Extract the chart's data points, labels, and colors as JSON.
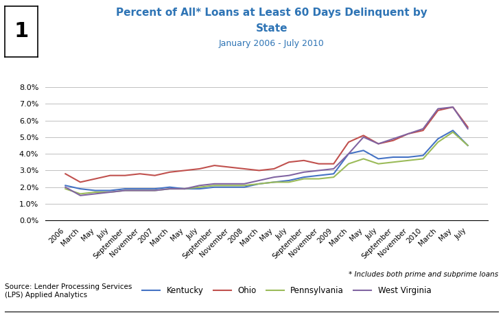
{
  "title_line1": "Percent of All* Loans at Least 60 Days Delinquent by",
  "title_line2": "State",
  "subtitle": "January 2006 - July 2010",
  "title_color": "#2E74B5",
  "subtitle_color": "#2E74B5",
  "figure_label": "1",
  "source_text": "Source: Lender Processing Services\n(LPS) Applied Analytics",
  "footnote": "* Includes both prime and subprime loans",
  "x_labels": [
    "2006",
    "March",
    "May",
    "July",
    "September",
    "November",
    "2007",
    "March",
    "May",
    "July",
    "September",
    "November",
    "2008",
    "March",
    "May",
    "July",
    "September",
    "November",
    "2009",
    "March",
    "May",
    "July",
    "September",
    "November",
    "2010",
    "March",
    "May",
    "July"
  ],
  "ylim": [
    0.0,
    0.085
  ],
  "yticks": [
    0.0,
    0.01,
    0.02,
    0.03,
    0.04,
    0.05,
    0.06,
    0.07,
    0.08
  ],
  "ytick_labels": [
    "0.0%",
    "1.0%",
    "2.0%",
    "3.0%",
    "4.0%",
    "5.0%",
    "6.0%",
    "7.0%",
    "8.0%"
  ],
  "Kentucky": [
    0.021,
    0.019,
    0.018,
    0.018,
    0.019,
    0.019,
    0.019,
    0.02,
    0.019,
    0.019,
    0.02,
    0.02,
    0.02,
    0.022,
    0.023,
    0.024,
    0.026,
    0.027,
    0.028,
    0.04,
    0.042,
    0.037,
    0.038,
    0.038,
    0.039,
    0.049,
    0.054,
    0.045
  ],
  "Ohio": [
    0.028,
    0.023,
    0.025,
    0.027,
    0.027,
    0.028,
    0.027,
    0.029,
    0.03,
    0.031,
    0.033,
    0.032,
    0.031,
    0.03,
    0.031,
    0.035,
    0.036,
    0.034,
    0.034,
    0.047,
    0.051,
    0.046,
    0.048,
    0.052,
    0.054,
    0.066,
    0.068,
    0.056
  ],
  "Pennsylvania": [
    0.019,
    0.016,
    0.017,
    0.017,
    0.018,
    0.018,
    0.018,
    0.019,
    0.019,
    0.02,
    0.021,
    0.021,
    0.021,
    0.022,
    0.023,
    0.023,
    0.025,
    0.025,
    0.026,
    0.034,
    0.037,
    0.034,
    0.035,
    0.036,
    0.037,
    0.047,
    0.053,
    0.045
  ],
  "West Virginia": [
    0.02,
    0.015,
    0.016,
    0.017,
    0.018,
    0.018,
    0.018,
    0.019,
    0.019,
    0.021,
    0.022,
    0.022,
    0.022,
    0.024,
    0.026,
    0.027,
    0.029,
    0.03,
    0.031,
    0.04,
    0.05,
    0.046,
    0.049,
    0.052,
    0.055,
    0.067,
    0.068,
    0.055
  ],
  "Kentucky_color": "#4472C4",
  "Ohio_color": "#C0504D",
  "Pennsylvania_color": "#9BBB59",
  "West_Virginia_color": "#8064A2",
  "background_color": "#FFFFFF",
  "grid_color": "#C0C0C0"
}
